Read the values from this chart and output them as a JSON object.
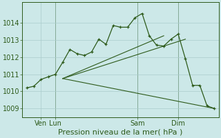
{
  "title": "Pression niveau de la mer( hPa )",
  "bg_color": "#cce8e8",
  "grid_color": "#aacccc",
  "line_color": "#2d5a1a",
  "ylim": [
    1008.5,
    1015.2
  ],
  "yticks": [
    1009,
    1010,
    1011,
    1012,
    1013,
    1014
  ],
  "xtick_labels": [
    "Ven",
    "Lun",
    "Sam",
    "Dim"
  ],
  "series_main_x": [
    0,
    0.5,
    1,
    1.5,
    2,
    2.5,
    3,
    3.5,
    4,
    4.5,
    5,
    5.5,
    6,
    6.5,
    7,
    7.5,
    8,
    8.5,
    9,
    9.5,
    10,
    10.5,
    11,
    11.5,
    12,
    12.5,
    13
  ],
  "series_main_y": [
    1010.2,
    1010.3,
    1010.7,
    1010.85,
    1011.0,
    1011.7,
    1012.45,
    1012.2,
    1012.1,
    1012.3,
    1013.05,
    1012.75,
    1013.85,
    1013.75,
    1013.75,
    1014.3,
    1014.55,
    1013.25,
    1012.7,
    1012.65,
    1013.05,
    1013.35,
    1011.9,
    1010.35,
    1010.35,
    1009.15,
    1009.0
  ],
  "trend_lines": [
    {
      "x": [
        2.5,
        9.5
      ],
      "y": [
        1010.75,
        1013.25
      ]
    },
    {
      "x": [
        2.5,
        11.0
      ],
      "y": [
        1010.75,
        1013.05
      ]
    },
    {
      "x": [
        2.5,
        13.0
      ],
      "y": [
        1010.75,
        1009.0
      ]
    }
  ],
  "vlines_x": [
    2,
    7.7,
    10.5
  ],
  "xtick_positions_x": [
    1,
    2,
    7.7,
    10.5
  ],
  "xlabel_fontsize": 8,
  "tick_fontsize": 7,
  "xlim": [
    -0.3,
    13.3
  ]
}
